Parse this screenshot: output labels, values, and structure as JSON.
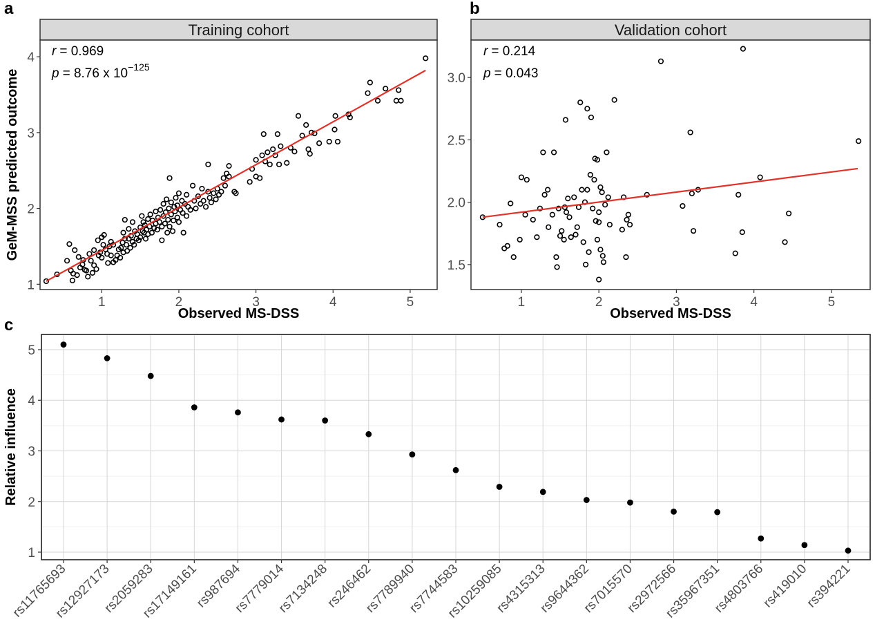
{
  "panels": {
    "a": {
      "letter": "a",
      "strip": "Training cohort",
      "xlabel": "Observed MS-DSS",
      "ylabel": "GeM-MSS predicted outcome",
      "r_label": "r",
      "r_value": "= 0.969",
      "p_label": "p",
      "p_value": "= 8.76 x 10",
      "p_exp": "−125"
    },
    "b": {
      "letter": "b",
      "strip": "Validation cohort",
      "xlabel": "Observed MS-DSS",
      "r_label": "r",
      "r_value": "= 0.214",
      "p_label": "p",
      "p_value": "= 0.043"
    },
    "c": {
      "letter": "c",
      "ylabel": "Relative influence"
    }
  },
  "colors": {
    "point_stroke": "#000000",
    "fit_line": "#e0332b",
    "strip_fill": "#d9d9d9",
    "grid": "#d4d4d4",
    "panel_border": "#333333",
    "dot_fill": "#000000"
  },
  "chart_data": [
    {
      "type": "scatter",
      "title": "Training cohort",
      "xlabel": "Observed MS-DSS",
      "ylabel": "GeM-MSS predicted outcome",
      "xlim": [
        0.2,
        5.35
      ],
      "ylim": [
        0.93,
        4.22
      ],
      "xticks": [
        1,
        2,
        3,
        4,
        5
      ],
      "yticks": [
        1,
        2,
        3,
        4
      ],
      "grid": false,
      "marker": "open-circle",
      "fit_line": {
        "x": [
          0.28,
          5.2
        ],
        "y": [
          1.04,
          3.82
        ]
      },
      "annotations": [
        "r = 0.969",
        "p = 8.76 x 10^−125"
      ],
      "points": [
        [
          0.28,
          1.04
        ],
        [
          0.42,
          1.13
        ],
        [
          0.55,
          1.31
        ],
        [
          0.58,
          1.53
        ],
        [
          0.6,
          1.18
        ],
        [
          0.63,
          1.14
        ],
        [
          0.62,
          1.05
        ],
        [
          0.65,
          1.45
        ],
        [
          0.68,
          1.12
        ],
        [
          0.7,
          1.36
        ],
        [
          0.72,
          1.22
        ],
        [
          0.75,
          1.26
        ],
        [
          0.76,
          1.32
        ],
        [
          0.78,
          1.19
        ],
        [
          0.8,
          1.18
        ],
        [
          0.82,
          1.1
        ],
        [
          0.84,
          1.4
        ],
        [
          0.86,
          1.31
        ],
        [
          0.88,
          1.15
        ],
        [
          0.9,
          1.25
        ],
        [
          0.9,
          1.45
        ],
        [
          0.93,
          1.2
        ],
        [
          0.95,
          1.58
        ],
        [
          0.96,
          1.38
        ],
        [
          0.98,
          1.42
        ],
        [
          1.0,
          1.35
        ],
        [
          1.0,
          1.62
        ],
        [
          1.02,
          1.52
        ],
        [
          1.03,
          1.65
        ],
        [
          1.05,
          1.46
        ],
        [
          1.07,
          1.4
        ],
        [
          1.08,
          1.28
        ],
        [
          1.1,
          1.5
        ],
        [
          1.12,
          1.56
        ],
        [
          1.12,
          1.38
        ],
        [
          1.15,
          1.52
        ],
        [
          1.15,
          1.29
        ],
        [
          1.18,
          1.32
        ],
        [
          1.2,
          1.38
        ],
        [
          1.22,
          1.46
        ],
        [
          1.24,
          1.35
        ],
        [
          1.25,
          1.48
        ],
        [
          1.27,
          1.55
        ],
        [
          1.28,
          1.68
        ],
        [
          1.28,
          1.42
        ],
        [
          1.3,
          1.6
        ],
        [
          1.3,
          1.85
        ],
        [
          1.32,
          1.52
        ],
        [
          1.33,
          1.44
        ],
        [
          1.35,
          1.6
        ],
        [
          1.35,
          1.73
        ],
        [
          1.37,
          1.48
        ],
        [
          1.38,
          1.64
        ],
        [
          1.4,
          1.56
        ],
        [
          1.4,
          1.82
        ],
        [
          1.42,
          1.52
        ],
        [
          1.43,
          1.7
        ],
        [
          1.45,
          1.6
        ],
        [
          1.46,
          1.66
        ],
        [
          1.48,
          1.58
        ],
        [
          1.5,
          1.75
        ],
        [
          1.5,
          1.62
        ],
        [
          1.52,
          1.9
        ],
        [
          1.53,
          1.7
        ],
        [
          1.54,
          1.82
        ],
        [
          1.55,
          1.68
        ],
        [
          1.56,
          1.78
        ],
        [
          1.57,
          1.6
        ],
        [
          1.58,
          1.72
        ],
        [
          1.6,
          1.86
        ],
        [
          1.6,
          1.66
        ],
        [
          1.62,
          1.76
        ],
        [
          1.63,
          1.92
        ],
        [
          1.65,
          1.68
        ],
        [
          1.66,
          1.84
        ],
        [
          1.68,
          1.74
        ],
        [
          1.7,
          1.8
        ],
        [
          1.7,
          1.96
        ],
        [
          1.72,
          1.72
        ],
        [
          1.73,
          1.88
        ],
        [
          1.75,
          1.82
        ],
        [
          1.76,
          1.98
        ],
        [
          1.78,
          1.76
        ],
        [
          1.78,
          1.58
        ],
        [
          1.8,
          1.9
        ],
        [
          1.8,
          2.06
        ],
        [
          1.82,
          1.8
        ],
        [
          1.83,
          1.95
        ],
        [
          1.84,
          2.12
        ],
        [
          1.85,
          1.68
        ],
        [
          1.86,
          1.85
        ],
        [
          1.87,
          2.0
        ],
        [
          1.88,
          1.76
        ],
        [
          1.88,
          2.4
        ],
        [
          1.9,
          1.92
        ],
        [
          1.9,
          2.08
        ],
        [
          1.92,
          1.7
        ],
        [
          1.93,
          1.84
        ],
        [
          1.94,
          2.02
        ],
        [
          1.95,
          1.96
        ],
        [
          1.96,
          2.14
        ],
        [
          1.98,
          1.88
        ],
        [
          1.98,
          2.04
        ],
        [
          2.0,
          2.2
        ],
        [
          2.0,
          1.82
        ],
        [
          2.02,
          1.98
        ],
        [
          2.04,
          2.1
        ],
        [
          2.05,
          1.94
        ],
        [
          2.06,
          1.68
        ],
        [
          2.08,
          2.06
        ],
        [
          2.1,
          2.18
        ],
        [
          2.1,
          1.9
        ],
        [
          2.12,
          2.02
        ],
        [
          2.15,
          1.98
        ],
        [
          2.18,
          2.3
        ],
        [
          2.2,
          2.1
        ],
        [
          2.22,
          2.0
        ],
        [
          2.25,
          2.16
        ],
        [
          2.28,
          2.06
        ],
        [
          2.3,
          2.26
        ],
        [
          2.32,
          2.1
        ],
        [
          2.35,
          2.02
        ],
        [
          2.38,
          2.22
        ],
        [
          2.38,
          2.58
        ],
        [
          2.4,
          2.14
        ],
        [
          2.42,
          2.08
        ],
        [
          2.45,
          2.2
        ],
        [
          2.48,
          2.12
        ],
        [
          2.5,
          2.26
        ],
        [
          2.52,
          2.18
        ],
        [
          2.55,
          2.22
        ],
        [
          2.58,
          2.4
        ],
        [
          2.6,
          2.3
        ],
        [
          2.62,
          2.46
        ],
        [
          2.65,
          2.42
        ],
        [
          2.65,
          2.56
        ],
        [
          2.72,
          2.22
        ],
        [
          2.74,
          2.2
        ],
        [
          2.92,
          2.35
        ],
        [
          2.95,
          2.52
        ],
        [
          3.0,
          2.64
        ],
        [
          3.0,
          2.42
        ],
        [
          3.05,
          2.4
        ],
        [
          3.08,
          2.7
        ],
        [
          3.1,
          2.98
        ],
        [
          3.12,
          2.62
        ],
        [
          3.15,
          2.74
        ],
        [
          3.18,
          2.58
        ],
        [
          3.22,
          2.78
        ],
        [
          3.25,
          2.7
        ],
        [
          3.28,
          2.98
        ],
        [
          3.3,
          2.58
        ],
        [
          3.32,
          2.82
        ],
        [
          3.4,
          2.6
        ],
        [
          3.45,
          2.8
        ],
        [
          3.5,
          2.75
        ],
        [
          3.55,
          3.22
        ],
        [
          3.6,
          2.96
        ],
        [
          3.65,
          3.1
        ],
        [
          3.68,
          2.78
        ],
        [
          3.7,
          2.72
        ],
        [
          3.72,
          3.0
        ],
        [
          3.76,
          2.99
        ],
        [
          3.82,
          2.86
        ],
        [
          3.95,
          2.88
        ],
        [
          4.02,
          3.04
        ],
        [
          4.03,
          3.22
        ],
        [
          4.06,
          2.88
        ],
        [
          4.2,
          3.24
        ],
        [
          4.22,
          3.2
        ],
        [
          4.45,
          3.52
        ],
        [
          4.48,
          3.66
        ],
        [
          4.58,
          3.42
        ],
        [
          4.68,
          3.58
        ],
        [
          4.82,
          3.42
        ],
        [
          4.85,
          3.56
        ],
        [
          4.88,
          3.42
        ],
        [
          5.2,
          3.98
        ]
      ]
    },
    {
      "type": "scatter",
      "title": "Validation cohort",
      "xlabel": "Observed MS-DSS",
      "ylabel": "",
      "xlim": [
        0.35,
        5.5
      ],
      "ylim": [
        1.3,
        3.3
      ],
      "xticks": [
        1,
        2,
        3,
        4,
        5
      ],
      "yticks": [
        1.5,
        2.0,
        2.5,
        3.0
      ],
      "grid": false,
      "marker": "open-circle",
      "fit_line": {
        "x": [
          0.5,
          5.34
        ],
        "y": [
          1.88,
          2.27
        ]
      },
      "annotations": [
        "r = 0.214",
        "p = 0.043"
      ],
      "points": [
        [
          0.5,
          1.88
        ],
        [
          0.72,
          1.82
        ],
        [
          0.78,
          1.63
        ],
        [
          0.82,
          1.65
        ],
        [
          0.86,
          1.99
        ],
        [
          0.9,
          1.56
        ],
        [
          0.98,
          1.7
        ],
        [
          1.0,
          2.2
        ],
        [
          1.05,
          1.9
        ],
        [
          1.07,
          2.18
        ],
        [
          1.15,
          1.86
        ],
        [
          1.2,
          1.72
        ],
        [
          1.24,
          1.95
        ],
        [
          1.28,
          2.4
        ],
        [
          1.3,
          2.06
        ],
        [
          1.34,
          2.1
        ],
        [
          1.35,
          1.8
        ],
        [
          1.4,
          1.9
        ],
        [
          1.42,
          2.4
        ],
        [
          1.45,
          1.56
        ],
        [
          1.46,
          1.48
        ],
        [
          1.48,
          1.95
        ],
        [
          1.5,
          1.73
        ],
        [
          1.52,
          1.77
        ],
        [
          1.55,
          1.7
        ],
        [
          1.56,
          1.96
        ],
        [
          1.57,
          2.66
        ],
        [
          1.58,
          1.92
        ],
        [
          1.6,
          2.03
        ],
        [
          1.62,
          1.88
        ],
        [
          1.64,
          1.72
        ],
        [
          1.68,
          2.04
        ],
        [
          1.7,
          1.74
        ],
        [
          1.72,
          1.8
        ],
        [
          1.74,
          1.96
        ],
        [
          1.76,
          2.8
        ],
        [
          1.78,
          2.1
        ],
        [
          1.8,
          1.68
        ],
        [
          1.82,
          2.0
        ],
        [
          1.83,
          1.5
        ],
        [
          1.85,
          2.1
        ],
        [
          1.85,
          2.75
        ],
        [
          1.87,
          1.6
        ],
        [
          1.89,
          2.22
        ],
        [
          1.9,
          2.68
        ],
        [
          1.92,
          1.95
        ],
        [
          1.94,
          2.18
        ],
        [
          1.95,
          2.35
        ],
        [
          1.96,
          1.85
        ],
        [
          1.98,
          2.34
        ],
        [
          1.98,
          1.7
        ],
        [
          2.0,
          1.38
        ],
        [
          2.0,
          1.92
        ],
        [
          2.0,
          1.84
        ],
        [
          2.02,
          1.62
        ],
        [
          2.02,
          2.12
        ],
        [
          2.04,
          2.08
        ],
        [
          2.05,
          1.57
        ],
        [
          2.06,
          1.52
        ],
        [
          2.08,
          1.98
        ],
        [
          2.1,
          2.4
        ],
        [
          2.12,
          2.04
        ],
        [
          2.14,
          1.82
        ],
        [
          2.2,
          2.82
        ],
        [
          2.3,
          1.78
        ],
        [
          2.32,
          2.04
        ],
        [
          2.35,
          1.56
        ],
        [
          2.36,
          1.86
        ],
        [
          2.38,
          1.9
        ],
        [
          2.4,
          1.82
        ],
        [
          2.62,
          2.06
        ],
        [
          2.8,
          3.13
        ],
        [
          3.08,
          1.97
        ],
        [
          3.18,
          2.56
        ],
        [
          3.2,
          2.07
        ],
        [
          3.22,
          1.77
        ],
        [
          3.28,
          2.1
        ],
        [
          3.76,
          1.59
        ],
        [
          3.8,
          2.06
        ],
        [
          3.85,
          1.76
        ],
        [
          3.86,
          3.23
        ],
        [
          4.08,
          2.2
        ],
        [
          4.4,
          1.68
        ],
        [
          4.45,
          1.91
        ],
        [
          5.35,
          2.49
        ]
      ]
    },
    {
      "type": "scatter",
      "title": "",
      "xlabel": "",
      "ylabel": "Relative influence",
      "ylim": [
        0.85,
        5.3
      ],
      "yticks": [
        1,
        2,
        3,
        4,
        5
      ],
      "grid": true,
      "marker": "filled-circle",
      "categories": [
        "rs11765693",
        "rs12927173",
        "rs2059283",
        "rs17149161",
        "rs987694",
        "rs7779014",
        "rs7134248",
        "rs246462",
        "rs7789940",
        "rs7744583",
        "rs10259085",
        "rs4315313",
        "rs9644362",
        "rs7015570",
        "rs2972566",
        "rs35967351",
        "rs4803766",
        "rs419010",
        "rs394221"
      ],
      "values": [
        5.1,
        4.83,
        4.48,
        3.86,
        3.76,
        3.62,
        3.6,
        3.33,
        2.93,
        2.62,
        2.29,
        2.19,
        2.03,
        1.98,
        1.8,
        1.79,
        1.27,
        1.14,
        1.03
      ]
    }
  ]
}
